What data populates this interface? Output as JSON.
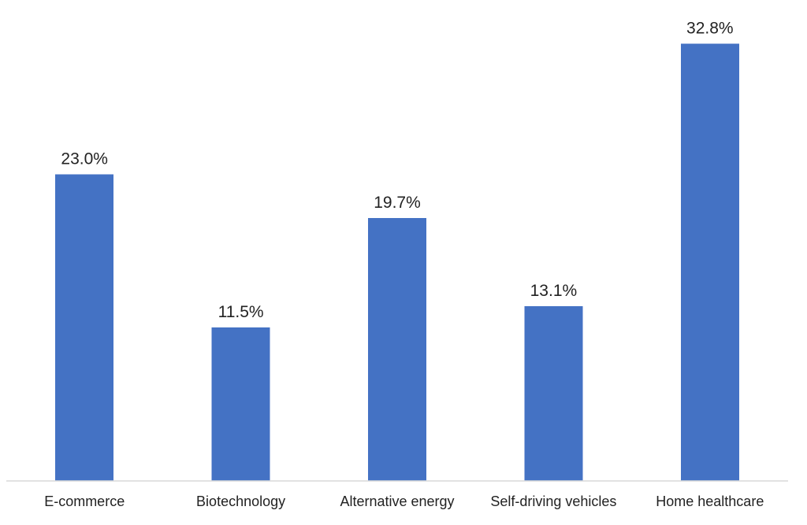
{
  "chart_data": {
    "type": "bar",
    "categories": [
      "E-commerce",
      "Biotechnology",
      "Alternative energy",
      "Self-driving vehicles",
      "Home healthcare"
    ],
    "values": [
      23.0,
      11.5,
      19.7,
      13.1,
      32.8
    ],
    "data_labels": [
      "23.0%",
      "11.5%",
      "19.7%",
      "13.1%",
      "32.8%"
    ],
    "unit": "%",
    "ylim": [
      0,
      35
    ],
    "grid": false,
    "legend": "none",
    "bar_color": "#4472c4"
  }
}
